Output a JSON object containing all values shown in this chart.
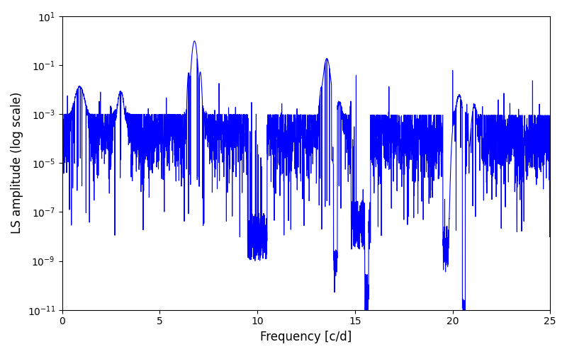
{
  "xlabel": "Frequency [c/d]",
  "ylabel": "LS amplitude (log scale)",
  "xlim": [
    0,
    25
  ],
  "ylim_log": [
    -11,
    1
  ],
  "line_color": "#0000ff",
  "line_width": 0.8,
  "background_color": "#ffffff",
  "freq_min": 0.0,
  "freq_max": 25.0,
  "n_points": 4000,
  "seed": 42,
  "peak_freqs": [
    0.9,
    3.0,
    6.78,
    7.1,
    13.56,
    14.2,
    20.34,
    21.1
  ],
  "peak_amps": [
    0.013,
    0.008,
    1.0,
    0.003,
    0.2,
    0.003,
    0.006,
    0.002
  ],
  "peak_widths": [
    0.15,
    0.1,
    0.08,
    0.08,
    0.1,
    0.08,
    0.1,
    0.08
  ],
  "noise_floor_log": -4.0,
  "noise_amplitude_log": 1.5,
  "figsize": [
    8.0,
    5.0
  ],
  "dpi": 100
}
